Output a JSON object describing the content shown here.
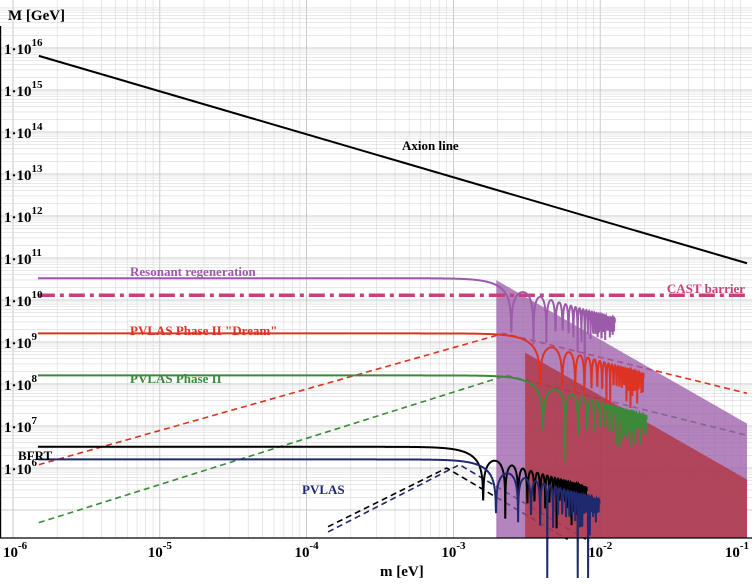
{
  "chart_data": {
    "type": "line",
    "title": "",
    "xlabel": "m [eV]",
    "ylabel": "M [GeV]",
    "xscale": "log",
    "yscale": "log",
    "xlim": [
      1e-06,
      0.1
    ],
    "ylim": [
      100000.0,
      1e+16
    ],
    "grid": true,
    "x_ticks": [
      {
        "base": "10",
        "exp": "-6"
      },
      {
        "base": "10",
        "exp": "-5"
      },
      {
        "base": "10",
        "exp": "-4"
      },
      {
        "base": "10",
        "exp": "-3"
      },
      {
        "base": "10",
        "exp": "-2"
      },
      {
        "base": "10",
        "exp": "-1"
      }
    ],
    "y_ticks": [
      {
        "base": "1·10",
        "exp": "6"
      },
      {
        "base": "1·10",
        "exp": "7"
      },
      {
        "base": "1·10",
        "exp": "8"
      },
      {
        "base": "1·10",
        "exp": "9"
      },
      {
        "base": "1·10",
        "exp": "10"
      },
      {
        "base": "1·10",
        "exp": "11"
      },
      {
        "base": "1·10",
        "exp": "12"
      },
      {
        "base": "1·10",
        "exp": "13"
      },
      {
        "base": "1·10",
        "exp": "14"
      },
      {
        "base": "1·10",
        "exp": "15"
      },
      {
        "base": "1·10",
        "exp": "16"
      }
    ],
    "series": [
      {
        "name": "Axion line",
        "color": "#000000",
        "style": "solid",
        "x": [
          1.5e-06,
          0.1
        ],
        "y": [
          6500000000000000.0,
          75000000000.0
        ]
      },
      {
        "name": "CAST barrier",
        "color": "#c8407a",
        "style": "dashdot",
        "x": [
          1.5e-06,
          0.1
        ],
        "y": [
          13000000000.0,
          13000000000.0
        ]
      },
      {
        "name": "Resonant regeneration",
        "color": "#9b5ba8",
        "style": "solid",
        "plateau": 33000000000.0,
        "m_cutoff": 0.0014
      },
      {
        "name": "PVLAS Phase II \"Dream\"",
        "color": "#dd3322",
        "style": "solid",
        "plateau": 1600000000.0,
        "m_cutoff": 0.0022
      },
      {
        "name": "PVLAS Phase II",
        "color": "#3a8a3a",
        "style": "solid",
        "plateau": 160000000.0,
        "m_cutoff": 0.0023
      },
      {
        "name": "BFRT",
        "color": "#000000",
        "style": "solid",
        "plateau": 3200000.0,
        "m_cutoff": 0.0009
      },
      {
        "name": "PVLAS",
        "color": "#1f2a6e",
        "style": "solid",
        "plateau": 1600000.0,
        "m_cutoff": 0.0011
      }
    ]
  }
}
